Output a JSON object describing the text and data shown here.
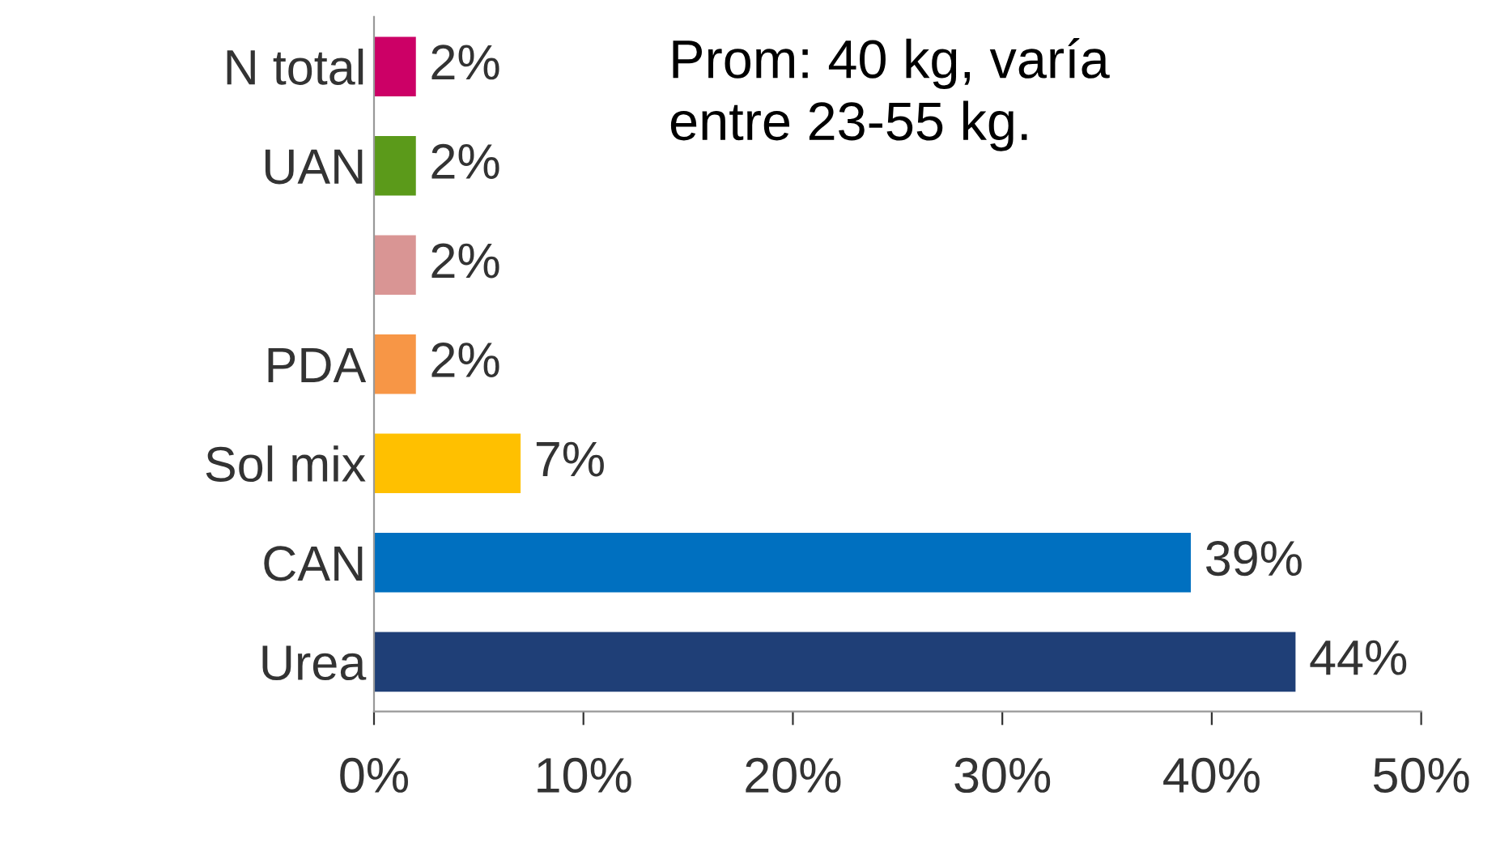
{
  "chart_data": {
    "type": "bar",
    "orientation": "horizontal",
    "categories": [
      "N total",
      "UAN",
      null,
      "PDA",
      "Sol mix",
      "CAN",
      "Urea"
    ],
    "values": [
      2,
      2,
      2,
      2,
      7,
      39,
      44
    ],
    "colors": [
      "#cc0066",
      "#5b9a1a",
      "#d99594",
      "#f79646",
      "#ffc000",
      "#0070c0",
      "#1f3f77"
    ],
    "value_labels": [
      "2%",
      "2%",
      "2%",
      "2%",
      "7%",
      "39%",
      "44%"
    ],
    "xlim": [
      0,
      50
    ],
    "xticks": [
      {
        "value": 0,
        "label": "0%"
      },
      {
        "value": 10,
        "label": "10%"
      },
      {
        "value": 20,
        "label": "20%"
      },
      {
        "value": 30,
        "label": "30%"
      },
      {
        "value": 40,
        "label": "40%"
      },
      {
        "value": 50,
        "label": "50%"
      }
    ],
    "grid": false,
    "legend": false,
    "annotations": [
      "Prom: 40 kg, varía\nentre 23-55 kg."
    ]
  }
}
